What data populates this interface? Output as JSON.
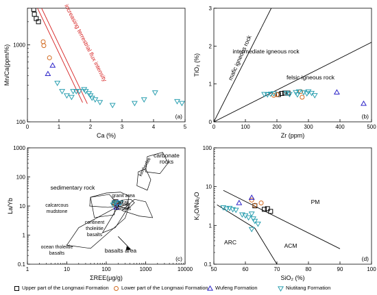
{
  "colors": {
    "upper_longmaxi": "#000000",
    "lower_longmaxi": "#d2691e",
    "wufeng": "#2b22c8",
    "niutitang": "#2a9fb0",
    "flux_line": "#d62020"
  },
  "legend": [
    {
      "name": "Upper part of the Longmaxi Formation",
      "marker": "square",
      "color": "#000000"
    },
    {
      "name": "Lower part of the Longmaxi Formation",
      "marker": "circle",
      "color": "#d2691e"
    },
    {
      "name": "Wufeng Formation",
      "marker": "triangle-up",
      "color": "#2b22c8"
    },
    {
      "name": "Niutitang Formation",
      "marker": "triangle-down",
      "color": "#2a9fb0"
    }
  ],
  "chart_data": [
    {
      "id": "a",
      "type": "scatter",
      "panel_label": "(a)",
      "xlabel": "Ca (%)",
      "ylabel": "Mn/Ca(ppm/%)",
      "xlim": [
        0,
        5
      ],
      "ylim": [
        100,
        3000
      ],
      "y_scale": "log",
      "x_ticks": [
        0,
        1,
        2,
        3,
        4,
        5
      ],
      "y_ticks": [
        {
          "v": 100,
          "label": "100"
        },
        {
          "v": 1000,
          "label": "1000"
        }
      ],
      "annotation": "increasing terrestrial flux intensity",
      "lines": [
        {
          "color": "#d62020",
          "points": [
            [
              0.32,
              3000
            ],
            [
              1.75,
              178
            ]
          ]
        },
        {
          "color": "#d62020",
          "points": [
            [
              0.45,
              3000
            ],
            [
              1.9,
              172
            ]
          ]
        }
      ],
      "series": [
        {
          "name": "Upper part of the Longmaxi Formation",
          "marker": "square",
          "points": [
            [
              0.2,
              2900
            ],
            [
              0.22,
              2500
            ],
            [
              0.28,
              2200
            ],
            [
              0.35,
              2000
            ]
          ]
        },
        {
          "name": "Lower part of the Longmaxi Formation",
          "marker": "circle",
          "points": [
            [
              0.5,
              1100
            ],
            [
              0.52,
              980
            ],
            [
              0.7,
              680
            ]
          ]
        },
        {
          "name": "Wufeng Formation",
          "marker": "triangle-up",
          "points": [
            [
              0.8,
              540
            ],
            [
              0.65,
              420
            ]
          ]
        },
        {
          "name": "Niutitang Formation",
          "marker": "triangle-down",
          "points": [
            [
              0.95,
              320
            ],
            [
              1.1,
              250
            ],
            [
              1.25,
              220
            ],
            [
              1.4,
              210
            ],
            [
              1.45,
              250
            ],
            [
              1.55,
              250
            ],
            [
              1.65,
              250
            ],
            [
              1.8,
              265
            ],
            [
              1.85,
              250
            ],
            [
              1.95,
              235
            ],
            [
              2.0,
              220
            ],
            [
              2.05,
              205
            ],
            [
              2.15,
              195
            ],
            [
              2.3,
              180
            ],
            [
              2.7,
              165
            ],
            [
              3.4,
              175
            ],
            [
              3.7,
              195
            ],
            [
              4.05,
              240
            ],
            [
              4.75,
              185
            ],
            [
              4.9,
              175
            ]
          ]
        }
      ]
    },
    {
      "id": "b",
      "type": "scatter",
      "panel_label": "(b)",
      "xlabel": "Zr (ppm)",
      "ylabel": "TiO₂ (%)",
      "xlim": [
        0,
        500
      ],
      "ylim": [
        0,
        3
      ],
      "x_ticks": [
        0,
        100,
        200,
        300,
        400,
        500
      ],
      "y_ticks": [
        0,
        1,
        2,
        3
      ],
      "annotations": [
        "mafic igneous rock",
        "intermediate igneous rock",
        "felsic igneous rock"
      ],
      "lines": [
        {
          "color": "#000000",
          "points": [
            [
              0,
              0
            ],
            [
              182,
              3
            ]
          ]
        },
        {
          "color": "#000000",
          "points": [
            [
              0,
              0
            ],
            [
              500,
              2.1
            ]
          ]
        }
      ],
      "series": [
        {
          "name": "Upper part of the Longmaxi Formation",
          "marker": "square",
          "points": [
            [
              205,
              0.72
            ],
            [
              215,
              0.75
            ],
            [
              225,
              0.76
            ],
            [
              235,
              0.76
            ]
          ]
        },
        {
          "name": "Lower part of the Longmaxi Formation",
          "marker": "circle",
          "points": [
            [
              190,
              0.7
            ],
            [
              200,
              0.72
            ],
            [
              280,
              0.65
            ],
            [
              275,
              0.8
            ]
          ]
        },
        {
          "name": "Wufeng Formation",
          "marker": "triangle-up",
          "points": [
            [
              390,
              0.78
            ],
            [
              475,
              0.48
            ]
          ]
        },
        {
          "name": "Niutitang Formation",
          "marker": "triangle-down",
          "points": [
            [
              160,
              0.73
            ],
            [
              170,
              0.72
            ],
            [
              180,
              0.74
            ],
            [
              190,
              0.75
            ],
            [
              230,
              0.76
            ],
            [
              240,
              0.73
            ],
            [
              260,
              0.78
            ],
            [
              265,
              0.72
            ],
            [
              270,
              0.8
            ],
            [
              285,
              0.78
            ],
            [
              295,
              0.75
            ],
            [
              300,
              0.8
            ],
            [
              310,
              0.76
            ],
            [
              320,
              0.7
            ]
          ]
        }
      ]
    },
    {
      "id": "c",
      "type": "scatter",
      "panel_label": "(c)",
      "xlabel": "ΣREE(μg/g)",
      "ylabel": "La/Yb",
      "xlim": [
        1,
        10000
      ],
      "ylim": [
        0.1,
        1000
      ],
      "x_scale": "log",
      "y_scale": "log",
      "x_ticks": [
        {
          "v": 1,
          "label": "1"
        },
        {
          "v": 10,
          "label": "10"
        },
        {
          "v": 100,
          "label": "100"
        },
        {
          "v": 1000,
          "label": "1000"
        },
        {
          "v": 10000,
          "label": "10000"
        }
      ],
      "y_ticks": [
        {
          "v": 0.1,
          "label": "0.1"
        },
        {
          "v": 1,
          "label": "1"
        },
        {
          "v": 10,
          "label": "10"
        },
        {
          "v": 100,
          "label": "100"
        },
        {
          "v": 1000,
          "label": "1000"
        }
      ],
      "annotations": [
        "carbonate rocks",
        "kimberlite",
        "sedimentary rock",
        "granit area",
        "alkali basalts",
        "calcarcous mudstone",
        "continent tholeiitie basalts",
        "ocean tholeiitie basalts",
        "basalts area"
      ],
      "regions": [
        {
          "name": "carbonate rocks",
          "points": [
            [
              1000,
              150
            ],
            [
              2300,
              130
            ],
            [
              3700,
              300
            ],
            [
              2700,
              700
            ],
            [
              1100,
              500
            ]
          ]
        },
        {
          "name": "kimberlite",
          "points": [
            [
              600,
              50
            ],
            [
              1100,
              35
            ],
            [
              1350,
              80
            ],
            [
              1000,
              190
            ],
            [
              650,
              150
            ]
          ]
        },
        {
          "name": "sedimentary rock",
          "points": [
            [
              38,
              10
            ],
            [
              110,
              9
            ],
            [
              250,
              10
            ],
            [
              350,
              12
            ],
            [
              380,
              22
            ],
            [
              230,
              30
            ],
            [
              100,
              28
            ],
            [
              40,
              20
            ]
          ]
        },
        {
          "name": "granit area",
          "points": [
            [
              200,
              10
            ],
            [
              360,
              8
            ],
            [
              520,
              13
            ],
            [
              420,
              17
            ],
            [
              250,
              16
            ]
          ]
        },
        {
          "name": "alkali basalts",
          "points": [
            [
              250,
              7
            ],
            [
              700,
              4.5
            ],
            [
              1500,
              4
            ],
            [
              1000,
              14
            ],
            [
              520,
              17
            ]
          ]
        },
        {
          "name": "calcarcous mudstone",
          "points": [
            [
              40,
              20
            ],
            [
              120,
              25
            ],
            [
              170,
              14
            ],
            [
              160,
              5
            ],
            [
              50,
              4
            ]
          ]
        },
        {
          "name": "continent tholeiitie basalts",
          "points": [
            [
              80,
              1.2
            ],
            [
              170,
              1.8
            ],
            [
              380,
              10
            ],
            [
              220,
              12
            ]
          ]
        },
        {
          "name": "ocean tholeiitie basalts",
          "points": [
            [
              10,
              0.45
            ],
            [
              40,
              0.35
            ],
            [
              300,
              3.8
            ],
            [
              400,
              12
            ],
            [
              180,
              9
            ],
            [
              20,
              1.8
            ]
          ]
        }
      ],
      "series": [
        {
          "name": "Upper part of the Longmaxi Formation",
          "marker": "square",
          "points": [
            [
              160,
              13
            ],
            [
              175,
              14
            ],
            [
              185,
              12
            ]
          ]
        },
        {
          "name": "Lower part of the Longmaxi Formation",
          "marker": "circle",
          "points": [
            [
              170,
              11
            ],
            [
              180,
              12.5
            ]
          ]
        },
        {
          "name": "Wufeng Formation",
          "marker": "triangle-up",
          "points": [
            [
              180,
              9
            ],
            [
              200,
              13
            ]
          ]
        },
        {
          "name": "Niutitang Formation",
          "marker": "triangle-down",
          "points": [
            [
              150,
              11
            ],
            [
              165,
              13
            ],
            [
              190,
              12
            ],
            [
              230,
              13
            ]
          ]
        }
      ]
    },
    {
      "id": "d",
      "type": "scatter",
      "panel_label": "(d)",
      "xlabel": "SiO₂ (%)",
      "ylabel": "K₂O/Na₂O",
      "xlim": [
        50,
        100
      ],
      "ylim": [
        0.1,
        100
      ],
      "y_scale": "log",
      "x_ticks": [
        50,
        60,
        70,
        80,
        90,
        100
      ],
      "y_ticks": [
        {
          "v": 0.1,
          "label": "0.1"
        },
        {
          "v": 1,
          "label": "1"
        },
        {
          "v": 10,
          "label": "10"
        },
        {
          "v": 100,
          "label": "100"
        }
      ],
      "annotations": [
        "PM",
        "ARC",
        "ACM"
      ],
      "lines": [
        {
          "color": "#000000",
          "points": [
            [
              53,
              8
            ],
            [
              90,
              0.25
            ]
          ]
        },
        {
          "color": "#000000",
          "points": [
            [
              51,
              3.4
            ],
            [
              63,
              0.85
            ],
            [
              70,
              0.1
            ]
          ]
        }
      ],
      "series": [
        {
          "name": "Upper part of the Longmaxi Formation",
          "marker": "square",
          "points": [
            [
              63,
              3.2
            ],
            [
              66,
              2.6
            ],
            [
              67,
              2.7
            ],
            [
              68,
              2.3
            ]
          ]
        },
        {
          "name": "Lower part of the Longmaxi Formation",
          "marker": "circle",
          "points": [
            [
              62,
              4.5
            ],
            [
              65,
              3.8
            ],
            [
              63,
              3.3
            ]
          ]
        },
        {
          "name": "Wufeng Formation",
          "marker": "triangle-up",
          "points": [
            [
              58,
              3.8
            ],
            [
              62,
              5.2
            ]
          ]
        },
        {
          "name": "Niutitang Formation",
          "marker": "triangle-down",
          "points": [
            [
              53,
              2.9
            ],
            [
              54,
              2.7
            ],
            [
              55,
              2.8
            ],
            [
              56,
              2.6
            ],
            [
              57,
              2.5
            ],
            [
              59,
              1.9
            ],
            [
              60,
              1.8
            ],
            [
              61,
              1.6
            ],
            [
              62,
              2.0
            ],
            [
              62.5,
              1.5
            ],
            [
              63,
              1.3
            ],
            [
              64,
              1.1
            ],
            [
              62,
              0.8
            ]
          ]
        }
      ]
    }
  ]
}
